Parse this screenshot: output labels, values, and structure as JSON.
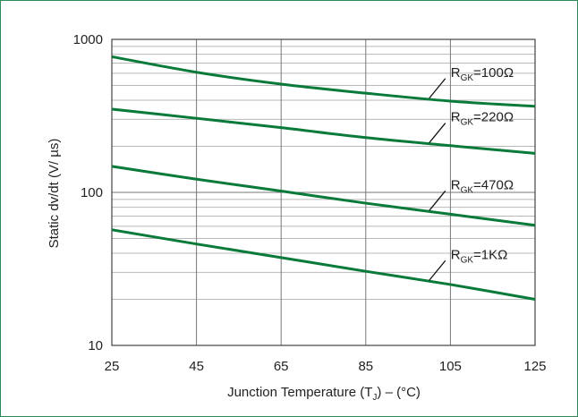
{
  "chart_data": {
    "type": "line",
    "title": "",
    "xlabel": "Junction Temperature (T",
    "xlabel_sub": "J",
    "xlabel_tail": ")  –   (°C)",
    "ylabel": "Static dv/dt (V/  µs)",
    "y_scale": "log",
    "xlim": [
      25,
      125
    ],
    "ylim": [
      10,
      1000
    ],
    "x_ticks": [
      25,
      45,
      65,
      85,
      105,
      125
    ],
    "y_ticks": [
      10,
      100,
      1000
    ],
    "grid": true,
    "line_color": "#0a7a3a",
    "series": [
      {
        "name": "R_GK=100Ω",
        "label_main": "R",
        "label_sub": "GK",
        "label_tail": "=100Ω",
        "x": [
          25,
          45,
          65,
          85,
          105,
          125
        ],
        "values": [
          770,
          610,
          510,
          445,
          395,
          365
        ]
      },
      {
        "name": "R_GK=220Ω",
        "label_main": "R",
        "label_sub": "GK",
        "label_tail": "=220Ω",
        "x": [
          25,
          45,
          65,
          85,
          105,
          125
        ],
        "values": [
          350,
          305,
          265,
          228,
          202,
          180
        ]
      },
      {
        "name": "R_GK=470Ω",
        "label_main": "R",
        "label_sub": "GK",
        "label_tail": "=470Ω",
        "x": [
          25,
          45,
          65,
          85,
          105,
          125
        ],
        "values": [
          148,
          122,
          102,
          85,
          72,
          61
        ]
      },
      {
        "name": "R_GK=1KΩ",
        "label_main": "R",
        "label_sub": "GK",
        "label_tail": "=1KΩ",
        "x": [
          25,
          45,
          65,
          85,
          105,
          125
        ],
        "values": [
          57,
          46,
          37.5,
          30.5,
          25,
          20
        ]
      }
    ]
  }
}
